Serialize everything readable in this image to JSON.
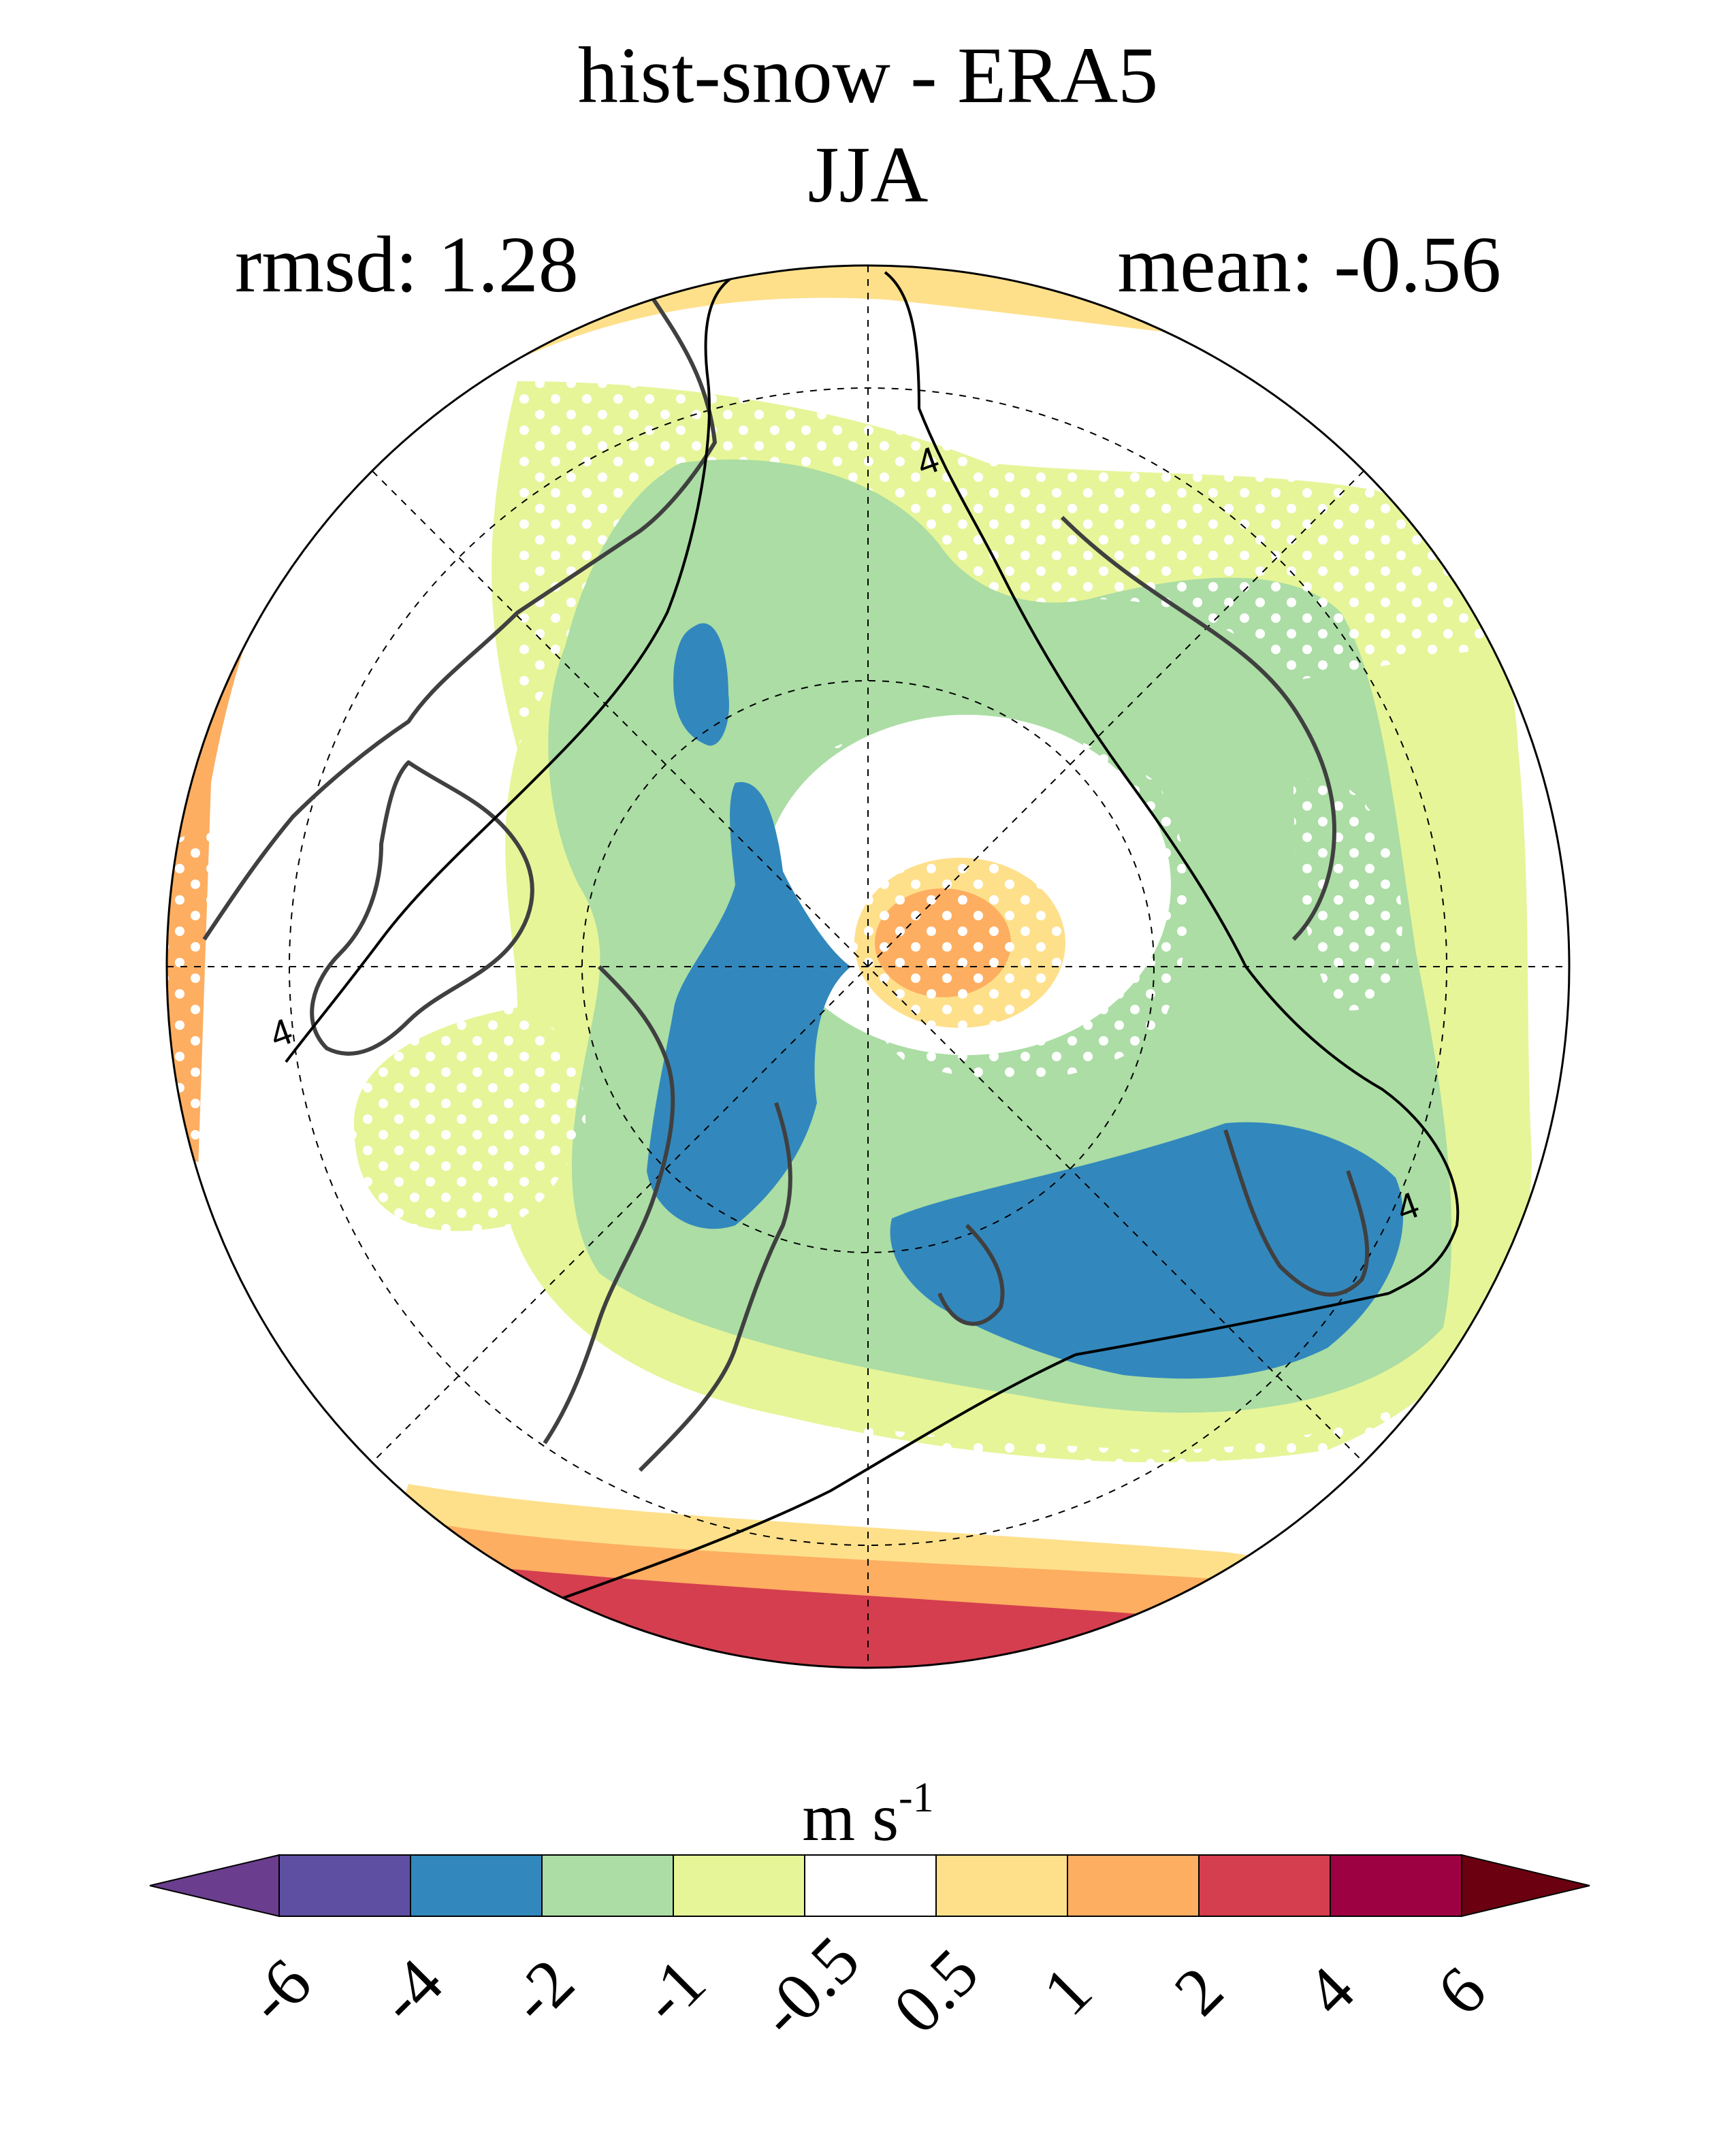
{
  "header": {
    "title": "hist-snow - ERA5",
    "subtitle": "JJA",
    "rmsd": "rmsd: 1.28",
    "mean": "mean: -0.56"
  },
  "map": {
    "projection": "north-polar-stereographic",
    "contour_label": "4",
    "stippling": "white dots"
  },
  "colorbar": {
    "units_main": "m s",
    "units_exp": "-1",
    "levels": [
      "-6",
      "-4",
      "-2",
      "-1",
      "-0.5",
      "0.5",
      "1",
      "2",
      "4",
      "6"
    ],
    "colors": [
      "#5e4fa2",
      "#3288bd",
      "#abdda4",
      "#e6f598",
      "#ffffff",
      "#fee08b",
      "#fdae61",
      "#d53e4f",
      "#9e0142"
    ],
    "under_color": "#6a3d8e",
    "over_color": "#6b0010"
  }
}
